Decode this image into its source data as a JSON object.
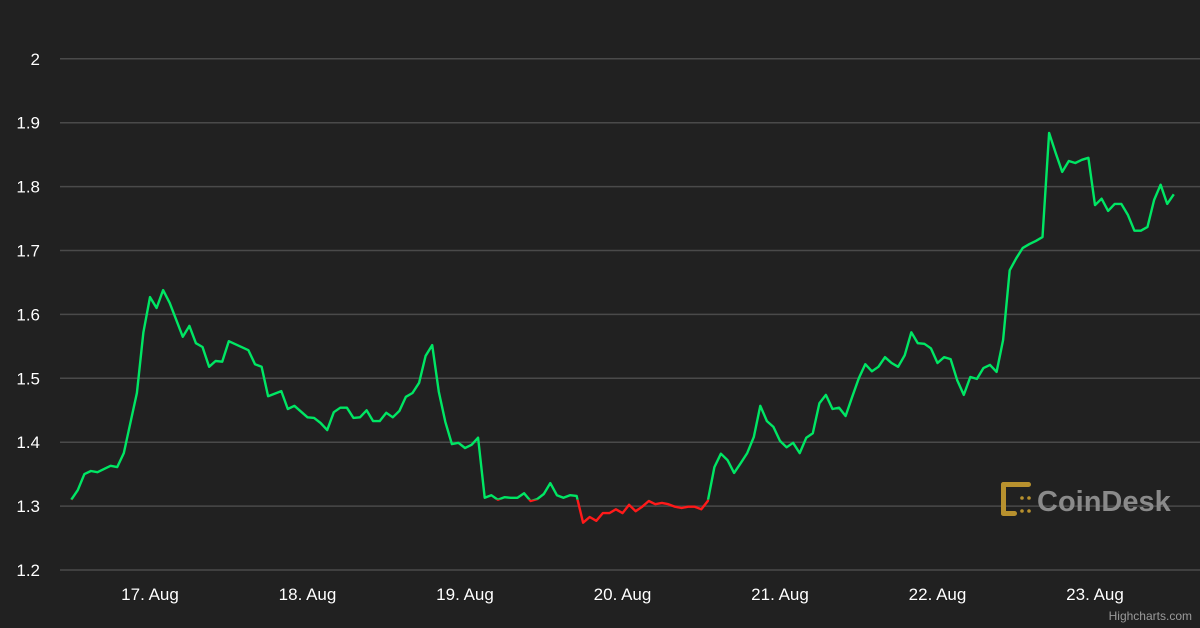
{
  "chart_data": {
    "type": "line",
    "title": "",
    "xlabel": "",
    "ylabel": "",
    "ylim": [
      1.2,
      2.0
    ],
    "yticks": [
      "1.2",
      "1.3",
      "1.4",
      "1.5",
      "1.6",
      "1.7",
      "1.8",
      "1.9",
      "2"
    ],
    "xticks": [
      "17. Aug",
      "18. Aug",
      "19. Aug",
      "20. Aug",
      "21. Aug",
      "22. Aug",
      "23. Aug"
    ],
    "grid": true,
    "threshold": 1.31,
    "colors": {
      "above": "#00e664",
      "below": "#ff1a1a",
      "background": "#212121",
      "grid": "#4a4a4a"
    },
    "series": [
      {
        "points": [
          [
            "16 Aug 12:00",
            1.31
          ],
          [
            "16 Aug 13:00",
            1.325
          ],
          [
            "16 Aug 14:00",
            1.35
          ],
          [
            "16 Aug 15:00",
            1.355
          ],
          [
            "16 Aug 16:00",
            1.353
          ],
          [
            "16 Aug 18:00",
            1.363
          ],
          [
            "16 Aug 19:00",
            1.361
          ],
          [
            "16 Aug 20:00",
            1.383
          ],
          [
            "16 Aug 22:00",
            1.477
          ],
          [
            "16 Aug 23:00",
            1.572
          ],
          [
            "17 Aug 00:00",
            1.627
          ],
          [
            "17 Aug 01:00",
            1.61
          ],
          [
            "17 Aug 02:00",
            1.638
          ],
          [
            "17 Aug 03:00",
            1.618
          ],
          [
            "17 Aug 05:00",
            1.565
          ],
          [
            "17 Aug 06:00",
            1.582
          ],
          [
            "17 Aug 07:00",
            1.555
          ],
          [
            "17 Aug 08:00",
            1.549
          ],
          [
            "17 Aug 09:00",
            1.518
          ],
          [
            "17 Aug 10:00",
            1.527
          ],
          [
            "17 Aug 11:00",
            1.526
          ],
          [
            "17 Aug 12:00",
            1.558
          ],
          [
            "17 Aug 15:00",
            1.544
          ],
          [
            "17 Aug 16:00",
            1.522
          ],
          [
            "17 Aug 17:00",
            1.518
          ],
          [
            "17 Aug 18:00",
            1.472
          ],
          [
            "17 Aug 20:00",
            1.48
          ],
          [
            "17 Aug 21:00",
            1.452
          ],
          [
            "17 Aug 22:00",
            1.457
          ],
          [
            "18 Aug 00:00",
            1.439
          ],
          [
            "18 Aug 01:00",
            1.438
          ],
          [
            "18 Aug 02:00",
            1.43
          ],
          [
            "18 Aug 03:00",
            1.419
          ],
          [
            "18 Aug 04:00",
            1.447
          ],
          [
            "18 Aug 05:00",
            1.454
          ],
          [
            "18 Aug 06:00",
            1.454
          ],
          [
            "18 Aug 07:00",
            1.438
          ],
          [
            "18 Aug 08:00",
            1.439
          ],
          [
            "18 Aug 09:00",
            1.45
          ],
          [
            "18 Aug 10:00",
            1.433
          ],
          [
            "18 Aug 11:00",
            1.433
          ],
          [
            "18 Aug 12:00",
            1.446
          ],
          [
            "18 Aug 13:00",
            1.439
          ],
          [
            "18 Aug 14:00",
            1.449
          ],
          [
            "18 Aug 15:00",
            1.471
          ],
          [
            "18 Aug 16:00",
            1.477
          ],
          [
            "18 Aug 17:00",
            1.493
          ],
          [
            "18 Aug 18:00",
            1.535
          ],
          [
            "18 Aug 19:00",
            1.552
          ],
          [
            "18 Aug 20:00",
            1.479
          ],
          [
            "18 Aug 21:00",
            1.432
          ],
          [
            "18 Aug 22:00",
            1.397
          ],
          [
            "18 Aug 23:00",
            1.399
          ],
          [
            "19 Aug 00:00",
            1.391
          ],
          [
            "19 Aug 01:00",
            1.396
          ],
          [
            "19 Aug 02:00",
            1.407
          ],
          [
            "19 Aug 03:00",
            1.313
          ],
          [
            "19 Aug 04:00",
            1.317
          ],
          [
            "19 Aug 05:00",
            1.31
          ],
          [
            "19 Aug 06:00",
            1.314
          ],
          [
            "19 Aug 07:00",
            1.313
          ],
          [
            "19 Aug 08:00",
            1.313
          ],
          [
            "19 Aug 09:00",
            1.32
          ],
          [
            "19 Aug 10:00",
            1.308
          ],
          [
            "19 Aug 11:00",
            1.311
          ],
          [
            "19 Aug 12:00",
            1.319
          ],
          [
            "19 Aug 13:00",
            1.336
          ],
          [
            "19 Aug 14:00",
            1.317
          ],
          [
            "19 Aug 15:00",
            1.313
          ],
          [
            "19 Aug 16:00",
            1.317
          ],
          [
            "19 Aug 17:00",
            1.316
          ],
          [
            "19 Aug 18:00",
            1.274
          ],
          [
            "19 Aug 19:00",
            1.283
          ],
          [
            "19 Aug 20:00",
            1.277
          ],
          [
            "19 Aug 21:00",
            1.289
          ],
          [
            "19 Aug 22:00",
            1.289
          ],
          [
            "19 Aug 23:00",
            1.295
          ],
          [
            "20 Aug 00:00",
            1.289
          ],
          [
            "20 Aug 01:00",
            1.302
          ],
          [
            "20 Aug 02:00",
            1.292
          ],
          [
            "20 Aug 03:00",
            1.299
          ],
          [
            "20 Aug 04:00",
            1.308
          ],
          [
            "20 Aug 05:00",
            1.303
          ],
          [
            "20 Aug 06:00",
            1.305
          ],
          [
            "20 Aug 07:00",
            1.303
          ],
          [
            "20 Aug 08:00",
            1.299
          ],
          [
            "20 Aug 09:00",
            1.297
          ],
          [
            "20 Aug 10:00",
            1.299
          ],
          [
            "20 Aug 11:00",
            1.299
          ],
          [
            "20 Aug 12:00",
            1.295
          ],
          [
            "20 Aug 13:00",
            1.308
          ],
          [
            "20 Aug 14:00",
            1.361
          ],
          [
            "20 Aug 15:00",
            1.382
          ],
          [
            "20 Aug 16:00",
            1.372
          ],
          [
            "20 Aug 17:00",
            1.352
          ],
          [
            "20 Aug 18:00",
            1.367
          ],
          [
            "20 Aug 19:00",
            1.383
          ],
          [
            "20 Aug 20:00",
            1.408
          ],
          [
            "20 Aug 21:00",
            1.457
          ],
          [
            "20 Aug 22:00",
            1.433
          ],
          [
            "20 Aug 23:00",
            1.424
          ],
          [
            "21 Aug 00:00",
            1.402
          ],
          [
            "21 Aug 01:00",
            1.392
          ],
          [
            "21 Aug 02:00",
            1.399
          ],
          [
            "21 Aug 03:00",
            1.383
          ],
          [
            "21 Aug 04:00",
            1.407
          ],
          [
            "21 Aug 05:00",
            1.414
          ],
          [
            "21 Aug 06:00",
            1.461
          ],
          [
            "21 Aug 07:00",
            1.474
          ],
          [
            "21 Aug 08:00",
            1.452
          ],
          [
            "21 Aug 09:00",
            1.454
          ],
          [
            "21 Aug 10:00",
            1.441
          ],
          [
            "21 Aug 11:00",
            1.471
          ],
          [
            "21 Aug 12:00",
            1.5
          ],
          [
            "21 Aug 13:00",
            1.522
          ],
          [
            "21 Aug 14:00",
            1.511
          ],
          [
            "21 Aug 15:00",
            1.518
          ],
          [
            "21 Aug 16:00",
            1.533
          ],
          [
            "21 Aug 17:00",
            1.524
          ],
          [
            "21 Aug 18:00",
            1.518
          ],
          [
            "21 Aug 19:00",
            1.536
          ],
          [
            "21 Aug 20:00",
            1.572
          ],
          [
            "21 Aug 21:00",
            1.555
          ],
          [
            "21 Aug 22:00",
            1.554
          ],
          [
            "21 Aug 23:00",
            1.547
          ],
          [
            "22 Aug 00:00",
            1.524
          ],
          [
            "22 Aug 01:00",
            1.533
          ],
          [
            "22 Aug 02:00",
            1.53
          ],
          [
            "22 Aug 03:00",
            1.497
          ],
          [
            "22 Aug 04:00",
            1.474
          ],
          [
            "22 Aug 05:00",
            1.502
          ],
          [
            "22 Aug 06:00",
            1.499
          ],
          [
            "22 Aug 07:00",
            1.516
          ],
          [
            "22 Aug 08:00",
            1.521
          ],
          [
            "22 Aug 09:00",
            1.51
          ],
          [
            "22 Aug 10:00",
            1.56
          ],
          [
            "22 Aug 11:00",
            1.669
          ],
          [
            "22 Aug 12:00",
            1.688
          ],
          [
            "22 Aug 13:00",
            1.704
          ],
          [
            "22 Aug 14:00",
            1.71
          ],
          [
            "22 Aug 15:00",
            1.715
          ],
          [
            "22 Aug 16:00",
            1.721
          ],
          [
            "22 Aug 17:00",
            1.884
          ],
          [
            "22 Aug 18:00",
            1.853
          ],
          [
            "22 Aug 19:00",
            1.823
          ],
          [
            "22 Aug 20:00",
            1.84
          ],
          [
            "22 Aug 21:00",
            1.837
          ],
          [
            "22 Aug 22:00",
            1.842
          ],
          [
            "22 Aug 23:00",
            1.845
          ],
          [
            "23 Aug 00:00",
            1.771
          ],
          [
            "23 Aug 01:00",
            1.781
          ],
          [
            "23 Aug 02:00",
            1.762
          ],
          [
            "23 Aug 03:00",
            1.773
          ],
          [
            "23 Aug 04:00",
            1.773
          ],
          [
            "23 Aug 05:00",
            1.756
          ],
          [
            "23 Aug 06:00",
            1.731
          ],
          [
            "23 Aug 07:00",
            1.731
          ],
          [
            "23 Aug 08:00",
            1.737
          ],
          [
            "23 Aug 09:00",
            1.779
          ],
          [
            "23 Aug 10:00",
            1.803
          ],
          [
            "23 Aug 11:00",
            1.773
          ],
          [
            "23 Aug 12:00",
            1.788
          ]
        ]
      }
    ]
  },
  "watermark": {
    "text": "CoinDesk",
    "color": "#b8912e"
  },
  "credit": "Highcharts.com"
}
